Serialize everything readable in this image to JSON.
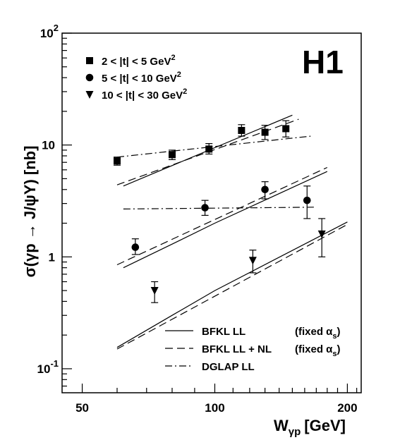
{
  "chart_data": {
    "type": "scatter",
    "title": "",
    "experiment_label": "H1",
    "xlabel": {
      "main": "W",
      "sub": "γp",
      "unit": "[GeV]"
    },
    "ylabel": "σ(γp → J/ψY) [nb]",
    "xscale": "log",
    "yscale": "log",
    "xlim": [
      45,
      215
    ],
    "ylim": [
      0.061,
      100
    ],
    "x_tick_labels": [
      {
        "value": 50,
        "label": "50"
      },
      {
        "value": 100,
        "label": "100"
      },
      {
        "value": 200,
        "label": "200"
      }
    ],
    "y_tick_labels": [
      {
        "value": 100,
        "base": "10",
        "exp": "2"
      },
      {
        "value": 10,
        "base": "10",
        "exp": ""
      },
      {
        "value": 1,
        "base": "1",
        "exp": ""
      },
      {
        "value": 0.1,
        "base": "10",
        "exp": "-1"
      }
    ],
    "data_series": [
      {
        "name": "2 < |t| < 5 GeV",
        "name_sup": "2",
        "marker": "square",
        "points": [
          {
            "x": 60,
            "y": 7.2,
            "lo": 6.6,
            "hi": 7.8
          },
          {
            "x": 80,
            "y": 8.2,
            "lo": 7.4,
            "hi": 9.0
          },
          {
            "x": 97,
            "y": 9.2,
            "lo": 8.3,
            "hi": 10.3
          },
          {
            "x": 115,
            "y": 13.5,
            "lo": 12.0,
            "hi": 15.2
          },
          {
            "x": 130,
            "y": 13.0,
            "lo": 11.2,
            "hi": 15.0
          },
          {
            "x": 145,
            "y": 14.0,
            "lo": 11.8,
            "hi": 16.5
          }
        ]
      },
      {
        "name": "5 < |t| < 10 GeV",
        "name_sup": "2",
        "marker": "circle",
        "points": [
          {
            "x": 66,
            "y": 1.22,
            "lo": 1.05,
            "hi": 1.45
          },
          {
            "x": 95,
            "y": 2.75,
            "lo": 2.35,
            "hi": 3.2
          },
          {
            "x": 130,
            "y": 4.0,
            "lo": 3.3,
            "hi": 4.7
          },
          {
            "x": 162,
            "y": 3.2,
            "lo": 2.2,
            "hi": 4.3
          }
        ]
      },
      {
        "name": "10 < |t| < 30 GeV",
        "name_sup": "2",
        "marker": "triangle-down",
        "points": [
          {
            "x": 73,
            "y": 0.5,
            "lo": 0.39,
            "hi": 0.6
          },
          {
            "x": 122,
            "y": 0.93,
            "lo": 0.72,
            "hi": 1.15
          },
          {
            "x": 175,
            "y": 1.6,
            "lo": 1.0,
            "hi": 2.2
          }
        ]
      }
    ],
    "curves": [
      {
        "group": "2-5",
        "style": "solid",
        "x": [
          62,
          150
        ],
        "y": [
          4.3,
          18.5
        ]
      },
      {
        "group": "2-5",
        "style": "dashed",
        "x": [
          60,
          155
        ],
        "y": [
          4.4,
          17.0
        ]
      },
      {
        "group": "2-5",
        "style": "dashdot",
        "x": [
          60,
          165
        ],
        "y": [
          7.8,
          12.0
        ]
      },
      {
        "group": "5-10",
        "style": "solid",
        "x": [
          62,
          80,
          100,
          180
        ],
        "y": [
          0.8,
          1.3,
          2.0,
          5.8
        ]
      },
      {
        "group": "5-10",
        "style": "dashed",
        "x": [
          60,
          180
        ],
        "y": [
          0.85,
          6.3
        ]
      },
      {
        "group": "5-10",
        "style": "dashdot",
        "x": [
          62,
          170
        ],
        "y": [
          2.68,
          2.78
        ]
      },
      {
        "group": "10-30",
        "style": "solid",
        "x": [
          60,
          80,
          100,
          200
        ],
        "y": [
          0.155,
          0.3,
          0.5,
          2.05
        ]
      },
      {
        "group": "10-30",
        "style": "dashed",
        "x": [
          60,
          200
        ],
        "y": [
          0.15,
          1.95
        ]
      }
    ],
    "legend_lines": [
      {
        "style": "solid",
        "text": "BFKL LL",
        "fixed": "(fixed α",
        "sub": "s",
        "close": ")"
      },
      {
        "style": "dashed",
        "text": "BFKL LL + NL",
        "fixed": "(fixed α",
        "sub": "s",
        "close": ")"
      },
      {
        "style": "dashdot",
        "text": "DGLAP LL",
        "fixed": "",
        "sub": "",
        "close": ""
      }
    ]
  }
}
